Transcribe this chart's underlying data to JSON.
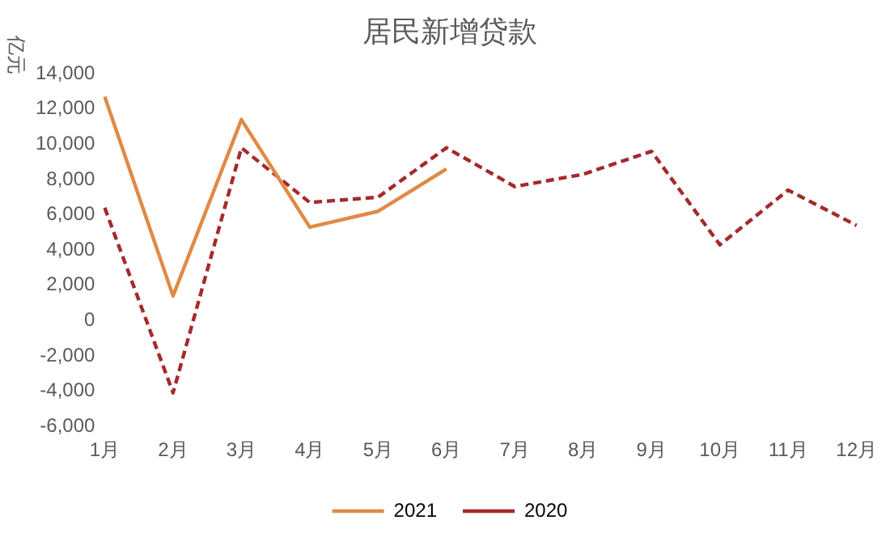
{
  "chart_data": {
    "type": "line",
    "title": "居民新增贷款",
    "ylabel": "亿元",
    "categories": [
      "1月",
      "2月",
      "3月",
      "4月",
      "5月",
      "6月",
      "7月",
      "8月",
      "9月",
      "10月",
      "11月",
      "12月"
    ],
    "series": [
      {
        "name": "2021",
        "color": "#e08a45",
        "line_style": "solid",
        "values": [
          12700,
          1400,
          11400,
          5300,
          6200,
          8600,
          null,
          null,
          null,
          null,
          null,
          null
        ]
      },
      {
        "name": "2020",
        "color": "#a52a2a",
        "line_style": "dashed",
        "values": [
          6400,
          -4100,
          9800,
          6700,
          7000,
          9800,
          7600,
          8300,
          9600,
          4300,
          7400,
          5400
        ]
      }
    ],
    "ylim": [
      -6000,
      14000
    ],
    "yticks": [
      {
        "value": -6000,
        "label": "-6,000"
      },
      {
        "value": -4000,
        "label": "-4,000"
      },
      {
        "value": -2000,
        "label": "-2,000"
      },
      0,
      {
        "value": 2000,
        "label": "2,000"
      },
      {
        "value": 4000,
        "label": "4,000"
      },
      {
        "value": 6000,
        "label": "6,000"
      },
      {
        "value": 8000,
        "label": "8,000"
      },
      {
        "value": 10000,
        "label": "10,000"
      },
      {
        "value": 12000,
        "label": "12,000"
      },
      {
        "value": 14000,
        "label": "14,000"
      }
    ],
    "grid": false,
    "legend": "bottom",
    "marker": "none"
  }
}
